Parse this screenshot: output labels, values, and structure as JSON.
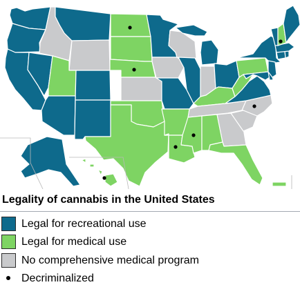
{
  "legend": {
    "title": "Legality of cannabis in the United States",
    "items": [
      {
        "key": "recreational",
        "label": "Legal for recreational use",
        "color": "#0e6a8c"
      },
      {
        "key": "medical",
        "label": "Legal for medical use",
        "color": "#7ed463"
      },
      {
        "key": "none",
        "label": "No comprehensive medical program",
        "color": "#c9cacc"
      },
      {
        "key": "decriminalized",
        "label": "Decriminalized",
        "marker": "black-dot"
      }
    ]
  },
  "colors": {
    "recreational": "#0e6a8c",
    "medical": "#7ed463",
    "none": "#c9cacc",
    "border": "#ffffff",
    "background": "#ffffff"
  },
  "states": {
    "recreational": [
      "WA",
      "OR",
      "CA",
      "NV",
      "AZ",
      "CO",
      "NM",
      "MT",
      "MN",
      "MI",
      "IL",
      "MO",
      "OH",
      "VA",
      "MD",
      "DE",
      "NJ",
      "NY",
      "CT",
      "RI",
      "MA",
      "VT",
      "ME",
      "AK"
    ],
    "medical": [
      "ND",
      "SD",
      "NE",
      "UT",
      "OK",
      "TX",
      "AR",
      "LA",
      "MS",
      "AL",
      "FL",
      "KY",
      "WV",
      "PA",
      "NH",
      "HI",
      "PR"
    ],
    "none": [
      "ID",
      "WY",
      "KS",
      "IA",
      "WI",
      "IN",
      "TN",
      "NC",
      "SC",
      "GA"
    ]
  },
  "decriminalized": [
    "ND",
    "NE",
    "NH",
    "NC",
    "MS",
    "LA",
    "HI"
  ]
}
